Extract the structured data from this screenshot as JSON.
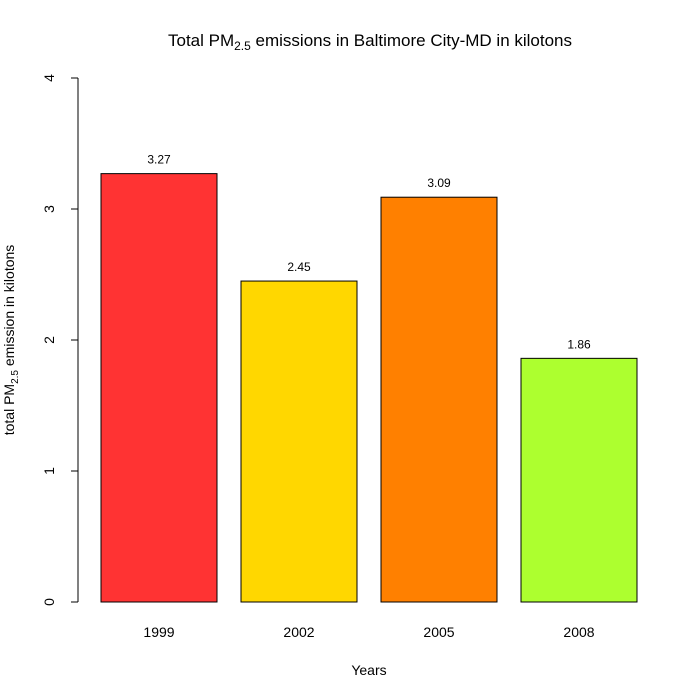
{
  "chart_data": {
    "type": "bar",
    "title": {
      "prefix": "Total PM",
      "subscript": "2.5",
      "suffix": " emissions in Baltimore City-MD in kilotons"
    },
    "xlabel": "Years",
    "ylabel": {
      "prefix": "total PM",
      "subscript": "2.5",
      "suffix": " emission in kilotons"
    },
    "categories": [
      "1999",
      "2002",
      "2005",
      "2008"
    ],
    "values": [
      3.27,
      2.45,
      3.09,
      1.86
    ],
    "data_labels": [
      "3.27",
      "2.45",
      "3.09",
      "1.86"
    ],
    "colors": [
      "#FF3333",
      "#FFD700",
      "#FF8000",
      "#ADFF2F"
    ],
    "ylim": [
      0,
      4
    ],
    "yticks": [
      0,
      1,
      2,
      3,
      4
    ],
    "grid": false,
    "legend": "none"
  }
}
